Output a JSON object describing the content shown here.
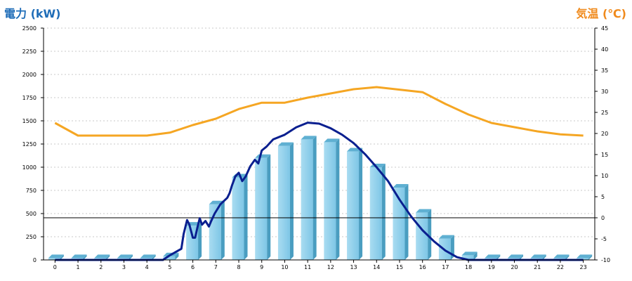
{
  "chart_data": {
    "type": "bar",
    "left_axis_title": "電力 (kW)",
    "right_axis_title": "気温 (℃)",
    "categories": [
      "0",
      "1",
      "2",
      "3",
      "4",
      "5",
      "6",
      "7",
      "8",
      "9",
      "10",
      "11",
      "12",
      "13",
      "14",
      "15",
      "16",
      "17",
      "18",
      "19",
      "20",
      "21",
      "22",
      "23"
    ],
    "y_left": {
      "min": 0,
      "max": 2500,
      "ticks": [
        0,
        250,
        500,
        750,
        1000,
        1250,
        1500,
        1750,
        2000,
        2250,
        2500
      ]
    },
    "y_right": {
      "min": -10,
      "max": 45,
      "ticks": [
        -10,
        -5,
        0,
        5,
        10,
        15,
        20,
        25,
        30,
        35,
        40,
        45
      ]
    },
    "grid": true,
    "series": [
      {
        "kind": "bar",
        "axis": "left",
        "color": "#87cdea",
        "values": [
          20,
          20,
          20,
          20,
          20,
          40,
          370,
          600,
          890,
          1100,
          1230,
          1300,
          1270,
          1170,
          1000,
          780,
          510,
          230,
          50,
          20,
          20,
          20,
          20,
          20
        ]
      },
      {
        "kind": "line",
        "axis": "left",
        "color": "#0a1f8f",
        "points": [
          [
            0,
            0
          ],
          [
            1,
            0
          ],
          [
            2,
            0
          ],
          [
            3,
            0
          ],
          [
            4,
            0
          ],
          [
            4.7,
            0
          ],
          [
            5,
            50
          ],
          [
            5.5,
            120
          ],
          [
            5.6,
            280
          ],
          [
            5.75,
            430
          ],
          [
            5.85,
            380
          ],
          [
            6,
            240
          ],
          [
            6.1,
            240
          ],
          [
            6.2,
            350
          ],
          [
            6.3,
            450
          ],
          [
            6.4,
            380
          ],
          [
            6.55,
            420
          ],
          [
            6.7,
            360
          ],
          [
            6.8,
            420
          ],
          [
            6.95,
            500
          ],
          [
            7.2,
            600
          ],
          [
            7.5,
            670
          ],
          [
            7.6,
            720
          ],
          [
            7.7,
            800
          ],
          [
            7.85,
            900
          ],
          [
            8.0,
            940
          ],
          [
            8.15,
            850
          ],
          [
            8.3,
            900
          ],
          [
            8.5,
            1010
          ],
          [
            8.7,
            1080
          ],
          [
            8.85,
            1040
          ],
          [
            9.0,
            1180
          ],
          [
            9.2,
            1220
          ],
          [
            9.5,
            1300
          ],
          [
            10,
            1350
          ],
          [
            10.5,
            1430
          ],
          [
            11,
            1480
          ],
          [
            11.5,
            1470
          ],
          [
            12,
            1420
          ],
          [
            12.5,
            1350
          ],
          [
            13,
            1260
          ],
          [
            13.5,
            1140
          ],
          [
            14,
            1000
          ],
          [
            14.5,
            850
          ],
          [
            15,
            650
          ],
          [
            15.5,
            470
          ],
          [
            16,
            320
          ],
          [
            16.5,
            200
          ],
          [
            17,
            100
          ],
          [
            17.5,
            30
          ],
          [
            18,
            0
          ],
          [
            19,
            0
          ],
          [
            20,
            0
          ],
          [
            21,
            0
          ],
          [
            22,
            0
          ],
          [
            23,
            0
          ]
        ]
      },
      {
        "kind": "line",
        "axis": "right",
        "color": "#f5a623",
        "values": [
          22.5,
          19.5,
          19.5,
          19.5,
          19.5,
          20.2,
          22.0,
          23.5,
          25.8,
          27.3,
          27.3,
          28.5,
          29.5,
          30.5,
          31.0,
          30.4,
          29.8,
          27.0,
          24.5,
          22.5,
          21.5,
          20.5,
          19.8,
          19.5
        ]
      }
    ],
    "reference_line": {
      "axis": "right",
      "value": 0
    }
  }
}
